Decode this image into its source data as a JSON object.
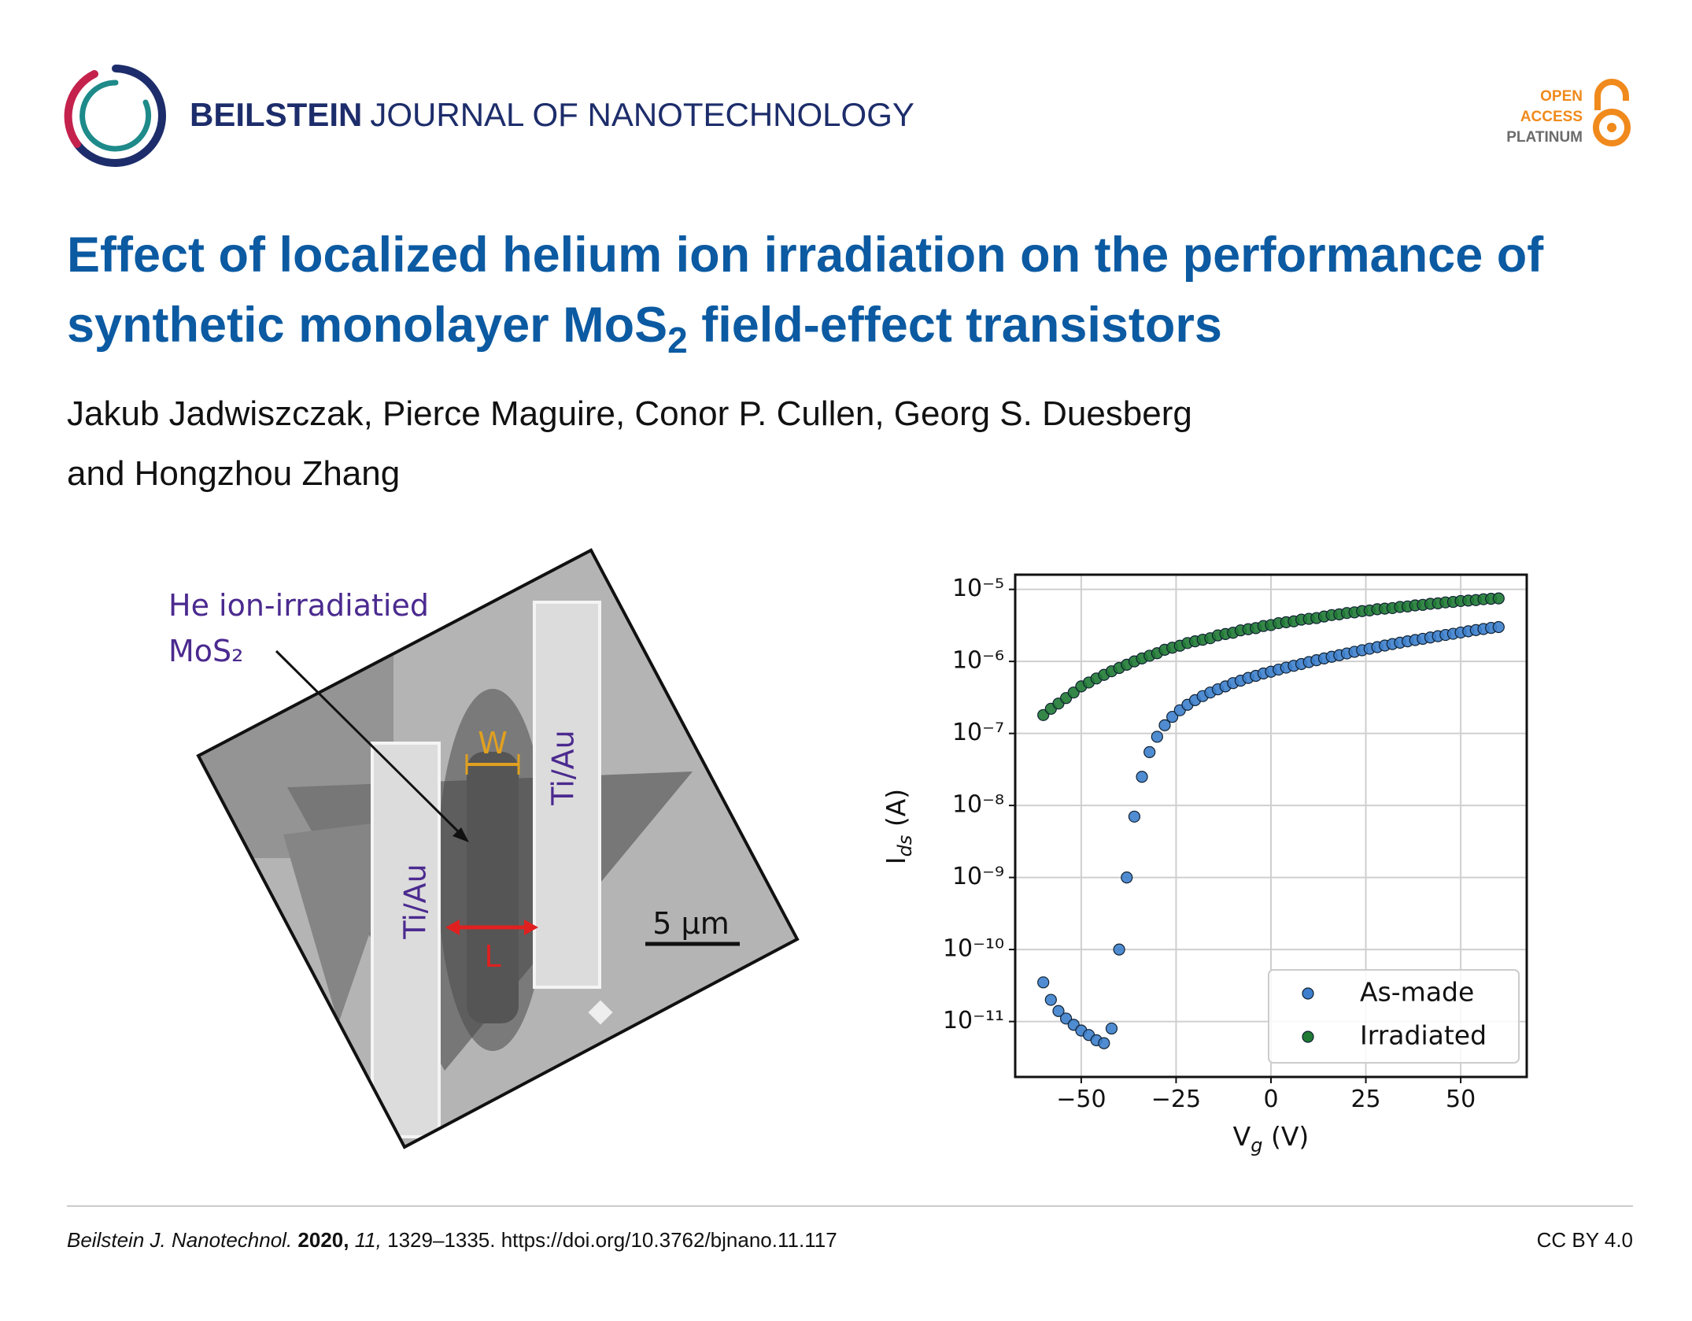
{
  "header": {
    "journal_bold": "BEILSTEIN",
    "journal_rest": "JOURNAL OF NANOTECHNOLOGY",
    "badge": [
      "OPEN",
      "ACCESS",
      "PLATINUM"
    ]
  },
  "article": {
    "title_line1": "Effect of localized helium ion irradiation on the performance of",
    "title_line2_before": "synthetic monolayer MoS",
    "title_line2_sub": "2",
    "title_line2_after": " field-effect transistors",
    "authors_line1": "Jakub Jadwiszczak, Pierce Maguire, Conor P. Cullen, Georg S. Duesberg",
    "authors_line2": "and Hongzhou Zhang"
  },
  "image_labels": {
    "region_line1": "He ion-irradiatied",
    "region_line2": "MoS₂",
    "electrode_left": "Ti/Au",
    "electrode_right": "Ti/Au",
    "width": "W",
    "length": "L",
    "scale_bar": "5 µm"
  },
  "chart_data": {
    "type": "scatter",
    "xlabel": {
      "main": "V",
      "sub": "g",
      "unit": " (V)"
    },
    "ylabel": {
      "main": "I",
      "sub": "ds",
      "unit": " (A)"
    },
    "yscale": "log",
    "grid": true,
    "legend": "lower right",
    "xlim": [
      -67.4,
      67.4
    ],
    "ylim": [
      1.7e-12,
      1.6e-05
    ],
    "xticks": [
      {
        "value": -50,
        "label": "−50"
      },
      {
        "value": -25,
        "label": "−25"
      },
      0,
      25,
      50
    ],
    "yticks": [
      {
        "value": 1e-05,
        "label": "10⁻⁵"
      },
      {
        "value": 1e-06,
        "label": "10⁻⁶"
      },
      {
        "value": 1e-07,
        "label": "10⁻⁷"
      },
      {
        "value": 1e-08,
        "label": "10⁻⁸"
      },
      {
        "value": 1e-09,
        "label": "10⁻⁹"
      },
      {
        "value": 1e-10,
        "label": "10⁻¹⁰"
      },
      {
        "value": 1e-11,
        "label": "10⁻¹¹"
      }
    ],
    "x": [
      -60,
      -58,
      -56,
      -54,
      -52,
      -50,
      -48,
      -46,
      -44,
      -42,
      -40,
      -38,
      -36,
      -34,
      -32,
      -30,
      -28,
      -26,
      -24,
      -22,
      -20,
      -18,
      -16,
      -14,
      -12,
      -10,
      -8,
      -6,
      -4,
      -2,
      0,
      2,
      4,
      6,
      8,
      10,
      12,
      14,
      16,
      18,
      20,
      22,
      24,
      26,
      28,
      30,
      32,
      34,
      36,
      38,
      40,
      42,
      44,
      46,
      48,
      50,
      52,
      54,
      56,
      58,
      60
    ],
    "series": [
      {
        "name": "As-made",
        "color": "#3d7fcc",
        "values": [
          3.5e-11,
          2e-11,
          1.4e-11,
          1.1e-11,
          9e-12,
          7.5e-12,
          6.5e-12,
          5.5e-12,
          5e-12,
          8e-12,
          1e-10,
          1e-09,
          7e-09,
          2.5e-08,
          5.5e-08,
          9e-08,
          1.3e-07,
          1.7e-07,
          2.1e-07,
          2.5e-07,
          2.9e-07,
          3.3e-07,
          3.7e-07,
          4.1e-07,
          4.5e-07,
          5e-07,
          5.4e-07,
          5.9e-07,
          6.3e-07,
          6.8e-07,
          7.2e-07,
          7.7e-07,
          8.2e-07,
          8.7e-07,
          9.2e-07,
          9.8e-07,
          1.04e-06,
          1.1e-06,
          1.16e-06,
          1.22e-06,
          1.29e-06,
          1.36e-06,
          1.43e-06,
          1.5e-06,
          1.58e-06,
          1.66e-06,
          1.74e-06,
          1.82e-06,
          1.9e-06,
          1.98e-06,
          2.06e-06,
          2.15e-06,
          2.24e-06,
          2.33e-06,
          2.42e-06,
          2.52e-06,
          2.62e-06,
          2.72e-06,
          2.82e-06,
          2.92e-06,
          3e-06
        ]
      },
      {
        "name": "Irradiated",
        "color": "#1f7a34",
        "values": [
          1.8e-07,
          2.2e-07,
          2.6e-07,
          3.1e-07,
          3.7e-07,
          4.5e-07,
          5.1e-07,
          5.8e-07,
          6.5e-07,
          7.3e-07,
          8.1e-07,
          9e-07,
          1e-06,
          1.1e-06,
          1.2e-06,
          1.3e-06,
          1.45e-06,
          1.55e-06,
          1.65e-06,
          1.8e-06,
          1.9e-06,
          2e-06,
          2.1e-06,
          2.3e-06,
          2.4e-06,
          2.5e-06,
          2.7e-06,
          2.8e-06,
          2.9e-06,
          3.1e-06,
          3.2e-06,
          3.4e-06,
          3.5e-06,
          3.6e-06,
          3.8e-06,
          3.9e-06,
          4e-06,
          4.2e-06,
          4.4e-06,
          4.5e-06,
          4.7e-06,
          4.8e-06,
          5e-06,
          5.1e-06,
          5.3e-06,
          5.4e-06,
          5.5e-06,
          5.7e-06,
          5.8e-06,
          6e-06,
          6.1e-06,
          6.3e-06,
          6.4e-06,
          6.6e-06,
          6.7e-06,
          6.9e-06,
          7e-06,
          7.1e-06,
          7.3e-06,
          7.4e-06,
          7.5e-06
        ]
      }
    ]
  },
  "footer": {
    "journal": "Beilstein J. Nanotechnol.",
    "year": " 2020,",
    "volume": " 11,",
    "pages_doi": " 1329–1335. https://doi.org/10.3762/bjnano.11.117",
    "license": "CC BY 4.0"
  }
}
